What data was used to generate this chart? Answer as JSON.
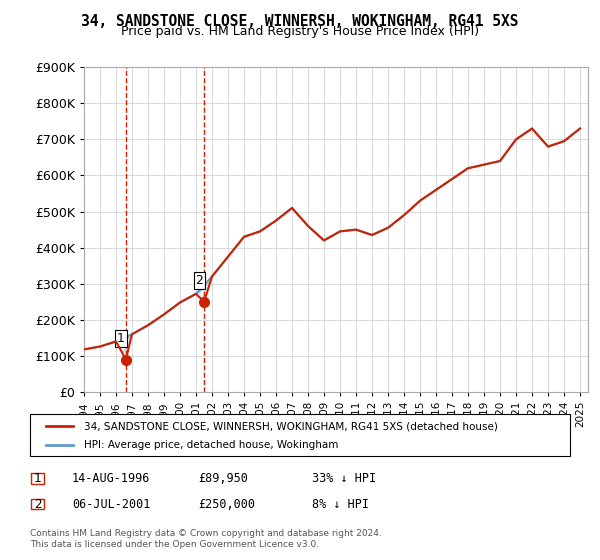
{
  "title": "34, SANDSTONE CLOSE, WINNERSH, WOKINGHAM, RG41 5XS",
  "subtitle": "Price paid vs. HM Land Registry's House Price Index (HPI)",
  "ylabel": "",
  "ylim": [
    0,
    900000
  ],
  "yticks": [
    0,
    100000,
    200000,
    300000,
    400000,
    500000,
    600000,
    700000,
    800000,
    900000
  ],
  "ytick_labels": [
    "£0",
    "£100K",
    "£200K",
    "£300K",
    "£400K",
    "£500K",
    "£600K",
    "£700K",
    "£800K",
    "£900K"
  ],
  "xlim_start": 1994.0,
  "xlim_end": 2025.5,
  "hpi_color": "#6699cc",
  "price_color": "#cc2200",
  "hatch_color": "#ccddee",
  "sale1_x": 1996.617,
  "sale1_y": 89950,
  "sale1_label": "1",
  "sale2_x": 2001.508,
  "sale2_y": 250000,
  "sale2_label": "2",
  "legend_line1": "34, SANDSTONE CLOSE, WINNERSH, WOKINGHAM, RG41 5XS (detached house)",
  "legend_line2": "HPI: Average price, detached house, Wokingham",
  "table_row1": [
    "1",
    "14-AUG-1996",
    "£89,950",
    "33% ↓ HPI"
  ],
  "table_row2": [
    "2",
    "06-JUL-2001",
    "£250,000",
    "8% ↓ HPI"
  ],
  "footnote": "Contains HM Land Registry data © Crown copyright and database right 2024.\nThis data is licensed under the Open Government Licence v3.0.",
  "background_color": "#ffffff",
  "plot_bg_color": "#ffffff",
  "hpi_years": [
    1994,
    1995,
    1996,
    1997,
    1998,
    1999,
    2000,
    2001,
    2002,
    2003,
    2004,
    2005,
    2006,
    2007,
    2008,
    2009,
    2010,
    2011,
    2012,
    2013,
    2014,
    2015,
    2016,
    2017,
    2018,
    2019,
    2020,
    2021,
    2022,
    2023,
    2024,
    2025
  ],
  "hpi_values": [
    118000,
    126000,
    140000,
    160000,
    185000,
    215000,
    248000,
    272000,
    320000,
    375000,
    430000,
    445000,
    475000,
    510000,
    460000,
    420000,
    445000,
    450000,
    435000,
    455000,
    490000,
    530000,
    560000,
    590000,
    620000,
    630000,
    640000,
    700000,
    730000,
    680000,
    695000,
    730000
  ],
  "price_years": [
    1994.0,
    1995.0,
    1996.0,
    1996.617,
    1997.0,
    1998.0,
    1999.0,
    2000.0,
    2001.0,
    2001.508,
    2002.0,
    2003.0,
    2004.0,
    2005.0,
    2006.0,
    2007.0,
    2008.0,
    2009.0,
    2010.0,
    2011.0,
    2012.0,
    2013.0,
    2014.0,
    2015.0,
    2016.0,
    2017.0,
    2018.0,
    2019.0,
    2020.0,
    2021.0,
    2022.0,
    2023.0,
    2024.0,
    2025.0
  ],
  "price_values": [
    118000,
    126000,
    140000,
    89950,
    160000,
    185000,
    215000,
    248000,
    272000,
    250000,
    320000,
    375000,
    430000,
    445000,
    475000,
    510000,
    460000,
    420000,
    445000,
    450000,
    435000,
    455000,
    490000,
    530000,
    560000,
    590000,
    620000,
    630000,
    640000,
    700000,
    730000,
    680000,
    695000,
    730000
  ]
}
